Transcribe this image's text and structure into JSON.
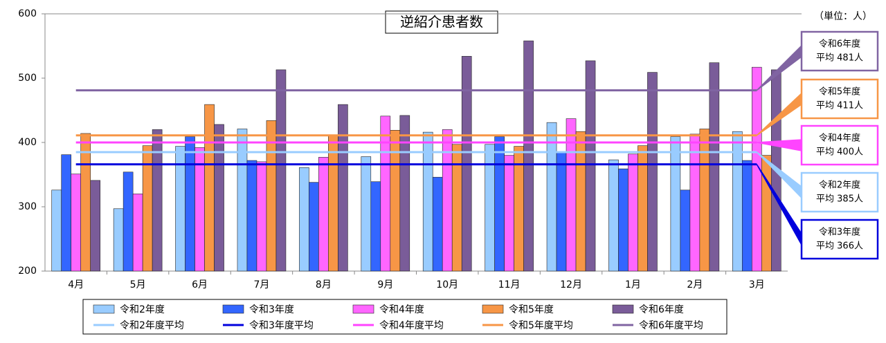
{
  "chart_data": {
    "type": "bar",
    "title": "逆紹介患者数",
    "unit_label": "（単位：人）",
    "categories": [
      "4月",
      "5月",
      "6月",
      "7月",
      "8月",
      "9月",
      "10月",
      "11月",
      "12月",
      "1月",
      "2月",
      "3月"
    ],
    "series": [
      {
        "name": "令和2年度",
        "color": "#99ccff",
        "values": [
          326,
          297,
          394,
          421,
          361,
          378,
          416,
          397,
          431,
          373,
          409,
          417
        ]
      },
      {
        "name": "令和3年度",
        "color": "#3366ff",
        "values": [
          381,
          354,
          409,
          372,
          338,
          339,
          346,
          409,
          384,
          359,
          326,
          372
        ]
      },
      {
        "name": "令和4年度",
        "color": "#ff66ff",
        "values": [
          351,
          320,
          392,
          370,
          377,
          441,
          420,
          380,
          437,
          382,
          413,
          517
        ]
      },
      {
        "name": "令和5年度",
        "color": "#f79646",
        "values": [
          414,
          395,
          459,
          434,
          410,
          419,
          397,
          394,
          417,
          395,
          421,
          380
        ]
      },
      {
        "name": "令和6年度",
        "color": "#7a5c99",
        "values": [
          341,
          420,
          428,
          513,
          459,
          442,
          534,
          558,
          527,
          509,
          524,
          513
        ]
      }
    ],
    "average_lines": [
      {
        "name": "令和2年度平均",
        "color": "#99ccff",
        "label": "令和2年度",
        "value": 385,
        "value_label": "平均 385人"
      },
      {
        "name": "令和3年度平均",
        "color": "#0000dd",
        "label": "令和3年度",
        "value": 366,
        "value_label": "平均 366人"
      },
      {
        "name": "令和4年度平均",
        "color": "#ff44ff",
        "label": "令和4年度",
        "value": 400,
        "value_label": "平均 400人"
      },
      {
        "name": "令和5年度平均",
        "color": "#f79646",
        "label": "令和5年度",
        "value": 411,
        "value_label": "平均 411人"
      },
      {
        "name": "令和6年度平均",
        "color": "#8064a2",
        "label": "令和6年度",
        "value": 481,
        "value_label": "平均 481人"
      }
    ],
    "ylim": [
      200,
      600
    ],
    "yticks": [
      200,
      300,
      400,
      500,
      600
    ],
    "grid": false
  }
}
